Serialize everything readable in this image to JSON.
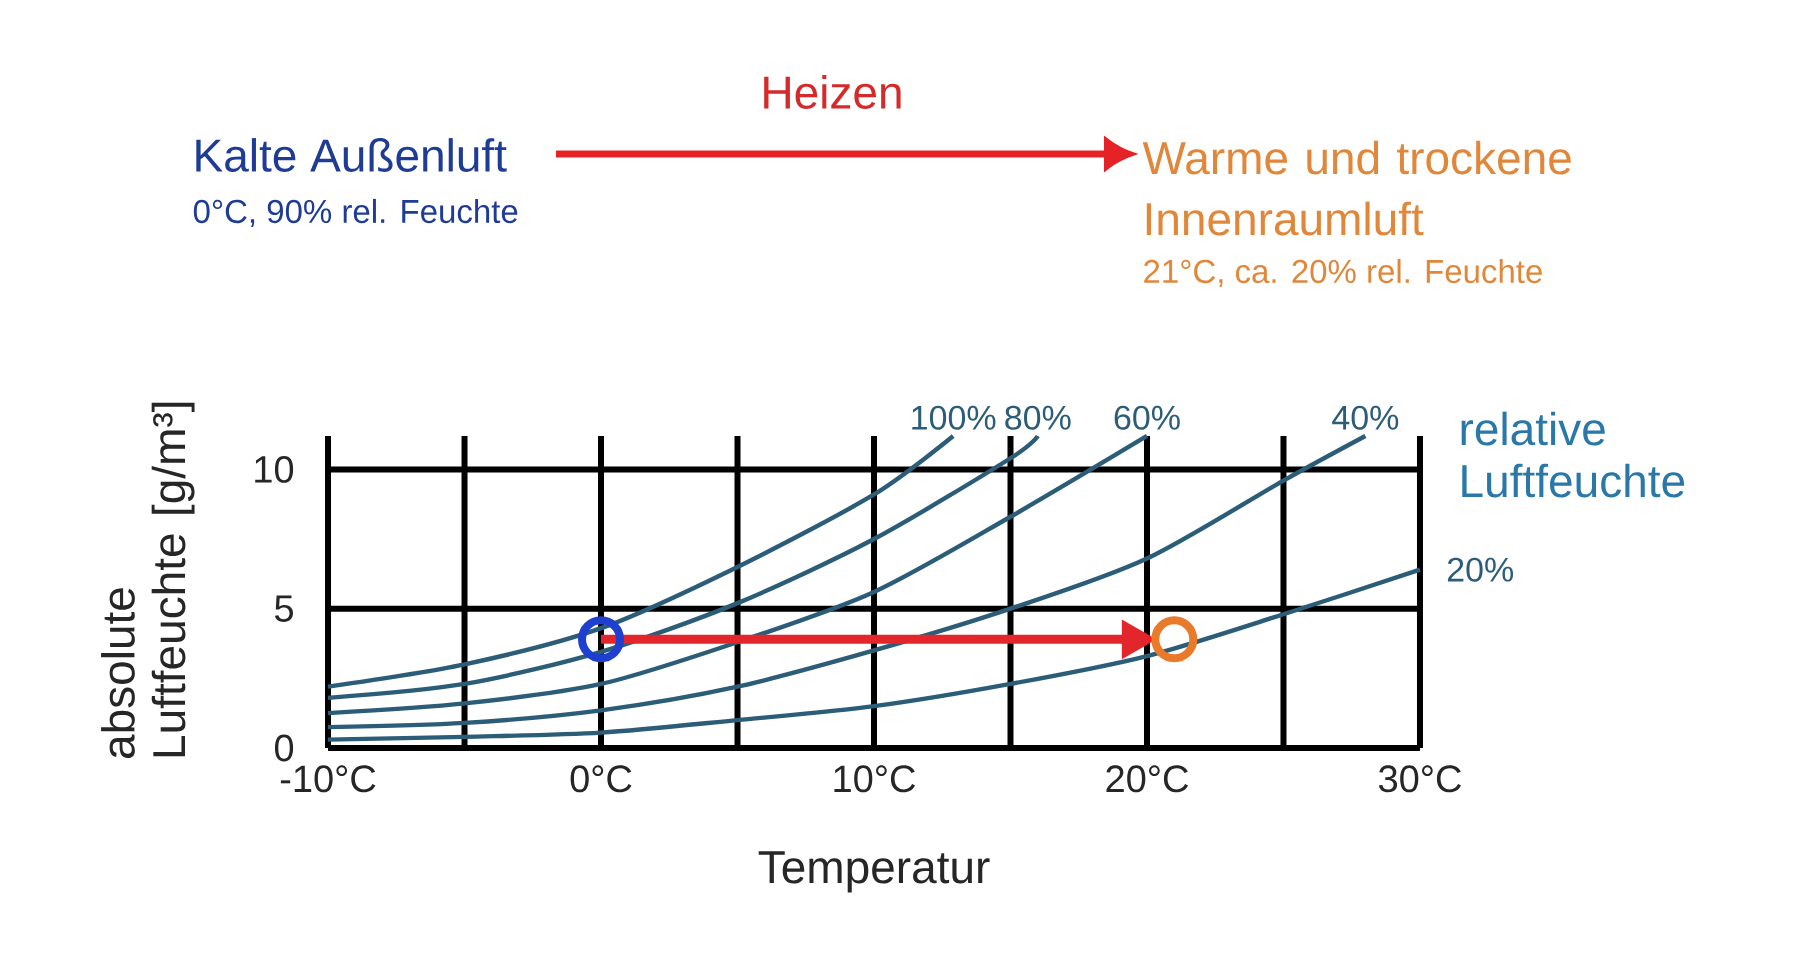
{
  "chart_data": {
    "type": "line",
    "xlabel": "Temperatur",
    "ylabel": "absolute Luftfeuchte [g/m³]",
    "annotations": [
      "Heizen",
      "Kalte Außenluft",
      "0°C, 90% rel. Feuchte",
      "Warme und trockene Innenraumluft",
      "21°C, ca. 20% rel. Feuchte",
      "relative Luftfeuchte"
    ],
    "xlim": [
      -10,
      30
    ],
    "ylim": [
      0,
      11.2
    ],
    "xticks": [
      {
        "value": -10,
        "label": "-10°C"
      },
      {
        "value": -5,
        "label": null
      },
      {
        "value": 0,
        "label": "0°C"
      },
      {
        "value": 5,
        "label": null
      },
      {
        "value": 10,
        "label": "10°C"
      },
      {
        "value": 15,
        "label": null
      },
      {
        "value": 20,
        "label": "20°C"
      },
      {
        "value": 25,
        "label": null
      },
      {
        "value": 30,
        "label": "30°C"
      }
    ],
    "yticks": [
      0,
      5,
      10
    ],
    "grid": true,
    "series": [
      {
        "name": "100%",
        "color": "#2c5d78",
        "x": [
          -10,
          -5,
          0,
          5,
          10,
          12.9
        ],
        "values": [
          2.2,
          3.0,
          4.3,
          6.5,
          9.1,
          11.2
        ]
      },
      {
        "name": "80%",
        "color": "#2c5d78",
        "x": [
          -10,
          -5,
          0,
          5,
          10,
          15,
          16
        ],
        "values": [
          1.8,
          2.3,
          3.45,
          5.2,
          7.5,
          10.4,
          11.2
        ]
      },
      {
        "name": "60%",
        "color": "#2c5d78",
        "x": [
          -10,
          -5,
          0,
          5,
          10,
          15,
          20
        ],
        "values": [
          1.25,
          1.6,
          2.3,
          3.8,
          5.6,
          8.3,
          11.2
        ]
      },
      {
        "name": "40%",
        "color": "#2c5d78",
        "x": [
          -10,
          -5,
          0,
          5,
          10,
          15,
          20,
          25,
          28
        ],
        "values": [
          0.75,
          0.9,
          1.35,
          2.2,
          3.5,
          5.0,
          6.8,
          9.6,
          11.2
        ]
      },
      {
        "name": "20%",
        "color": "#2c5d78",
        "x": [
          -10,
          -5,
          0,
          5,
          10,
          15,
          20,
          25,
          30
        ],
        "values": [
          0.3,
          0.4,
          0.55,
          1.0,
          1.5,
          2.3,
          3.3,
          4.8,
          6.4
        ]
      },
      {
        "type": "line",
        "color": "#e3262b",
        "x": [
          0,
          19.3
        ],
        "values": [
          3.9,
          3.9
        ]
      },
      {
        "type": "scatter",
        "color": "#e3262b",
        "marker": "triangle",
        "x": [
          19.5
        ],
        "values": [
          3.9
        ]
      },
      {
        "type": "scatter",
        "color": "#1f3fd0",
        "marker": "circle",
        "x": [
          0
        ],
        "values": [
          3.9
        ]
      },
      {
        "type": "scatter",
        "color": "#e87a2a",
        "marker": "circle",
        "x": [
          21
        ],
        "values": [
          3.9
        ]
      }
    ]
  }
}
